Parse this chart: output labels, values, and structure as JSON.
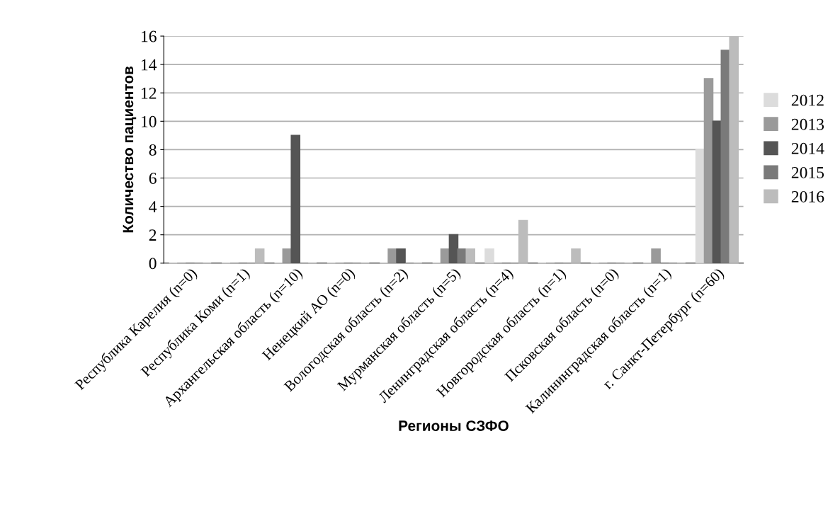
{
  "chart_data": {
    "type": "bar",
    "xlabel": "Регионы СЗФО",
    "ylabel": "Количество пациентов",
    "categories": [
      "Республика Карелия (n=0)",
      "Республика Коми (n=1)",
      "Архангельская область (n=10)",
      "Ненецкий АО (n=0)",
      "Вологодская область (n=2)",
      "Мурманская область (n=5)",
      "Ленинградская область (n=4)",
      "Новгородская область (n=1)",
      "Псковская область (n=0)",
      "Калининградская область (n=1)",
      "г. Санкт-Петербург (n=60)"
    ],
    "series": [
      {
        "name": "2012",
        "color": "#dcdcdc",
        "values": [
          0,
          0,
          0,
          0,
          0,
          0,
          1,
          0,
          0,
          0,
          8
        ]
      },
      {
        "name": "2013",
        "color": "#9a9a9a",
        "values": [
          0,
          0,
          1,
          0,
          1,
          1,
          0,
          0,
          0,
          1,
          13
        ]
      },
      {
        "name": "2014",
        "color": "#555555",
        "values": [
          0,
          0,
          9,
          0,
          1,
          2,
          0,
          0,
          0,
          0,
          10
        ]
      },
      {
        "name": "2015",
        "color": "#7a7a7a",
        "values": [
          0,
          0,
          0,
          0,
          0,
          1,
          0,
          0,
          0,
          0,
          15
        ]
      },
      {
        "name": "2016",
        "color": "#bcbcbc",
        "values": [
          0,
          1,
          0,
          0,
          0,
          1,
          3,
          1,
          0,
          0,
          16
        ]
      }
    ],
    "ylim": [
      0,
      16
    ],
    "yticks": [
      0,
      2,
      4,
      6,
      8,
      10,
      12,
      14,
      16
    ],
    "grid": "y",
    "legend": "right"
  }
}
